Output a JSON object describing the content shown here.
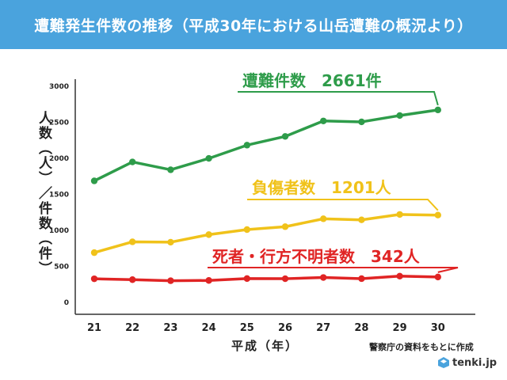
{
  "title": "遭難発生件数の推移（平成30年における山岳遭難の概況より）",
  "ylabel": "人数（人）／件数（件）",
  "xlabel": "平成（年）",
  "source": "警察庁の資料をもとに作成",
  "brand": "tenki.jp",
  "colors": {
    "title_bg": "#4aa3dd",
    "green": "#2e9c4a",
    "yellow": "#f0c21a",
    "red": "#e02424"
  },
  "chart_data": {
    "type": "line",
    "x": [
      "21",
      "22",
      "23",
      "24",
      "25",
      "26",
      "27",
      "28",
      "29",
      "30"
    ],
    "yticks": [
      "0",
      "500",
      "1000",
      "1500",
      "2000",
      "2500",
      "3000"
    ],
    "ylim": [
      0,
      3000
    ],
    "grid": false,
    "series": [
      {
        "name": "遭難件数",
        "callout": "遭難件数　2661件",
        "color": "#2e9c4a",
        "values": [
          1676,
          1939,
          1830,
          1988,
          2172,
          2293,
          2508,
          2495,
          2583,
          2661
        ]
      },
      {
        "name": "負傷者数",
        "callout": "負傷者数　1201人",
        "color": "#f0c21a",
        "values": [
          680,
          830,
          825,
          930,
          1000,
          1040,
          1150,
          1135,
          1210,
          1201
        ]
      },
      {
        "name": "死者・行方不明者数",
        "callout": "死者・行方不明者数　342人",
        "color": "#e02424",
        "values": [
          317,
          305,
          290,
          294,
          320,
          318,
          335,
          319,
          354,
          342
        ]
      }
    ]
  }
}
